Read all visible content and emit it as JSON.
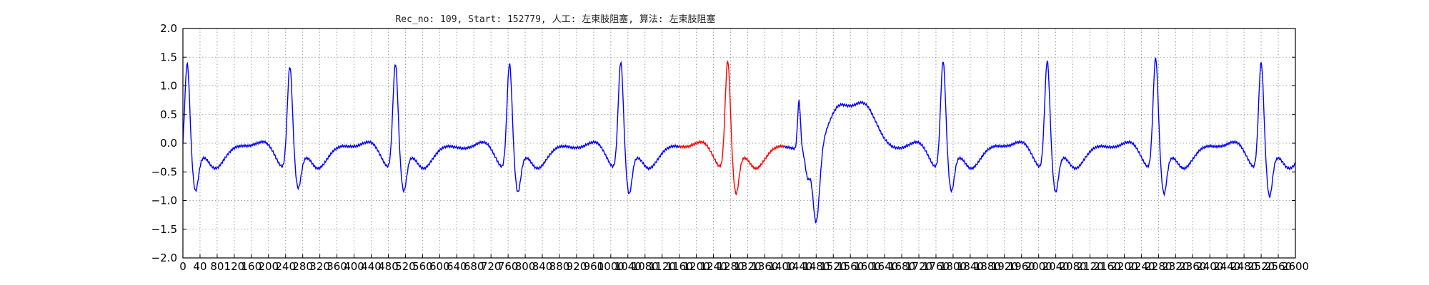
{
  "chart_data": {
    "type": "line",
    "title": "Rec_no: 109, Start: 152779, 人工: 左束肢阻塞, 算法: 左束肢阻塞",
    "xlabel": "",
    "ylabel": "",
    "xlim": [
      0,
      3900
    ],
    "ylim": [
      -2.0,
      2.0
    ],
    "grid": true,
    "grid_style": "dotted",
    "ytick_labels": [
      "2.0",
      "1.5",
      "1.0",
      "0.5",
      "0.0",
      "−0.5",
      "−1.0",
      "−1.5",
      "−2.0"
    ],
    "xtick_labels": [
      "0",
      "40",
      "80",
      "120",
      "160",
      "200",
      "240",
      "280",
      "320",
      "360",
      "400",
      "440",
      "480",
      "520",
      "560",
      "600",
      "640",
      "680",
      "720",
      "760",
      "800",
      "840",
      "880",
      "920",
      "960",
      "1000",
      "1040",
      "1080",
      "1120",
      "1160",
      "1200",
      "1240",
      "1280",
      "1320",
      "1360",
      "1400",
      "1440",
      "1480",
      "1520",
      "1560",
      "1600",
      "1640",
      "1680",
      "1720",
      "1760",
      "1800",
      "1840",
      "1880",
      "1920",
      "1960",
      "2000",
      "2040",
      "2080",
      "2120",
      "2160",
      "2200",
      "2240",
      "2280",
      "2320",
      "2360",
      "2400",
      "2440",
      "2480",
      "2520",
      "2560",
      "2600"
    ],
    "x_step": 40,
    "signal_end": 3900,
    "series": [
      {
        "color": "#0000ff",
        "beats": [
          {
            "x": 15,
            "peak": 1.55,
            "trough": -0.9
          },
          {
            "x": 375,
            "peak": 1.5,
            "trough": -0.85
          },
          {
            "x": 745,
            "peak": 1.55,
            "trough": -0.9
          },
          {
            "x": 1145,
            "peak": 1.55,
            "trough": -0.92
          },
          {
            "x": 1535,
            "peak": 1.58,
            "trough": -0.95
          },
          {
            "x": 2665,
            "peak": 1.6,
            "trough": -0.9
          },
          {
            "x": 3030,
            "peak": 1.6,
            "trough": -0.92
          },
          {
            "x": 3410,
            "peak": 1.65,
            "trough": -0.95
          },
          {
            "x": 3780,
            "peak": 1.57,
            "trough": -1.0
          }
        ],
        "pvc": {
          "x": 2220,
          "spike": 0.65,
          "trough": -1.52,
          "t_wave": 0.5
        }
      },
      {
        "color": "#ff0000",
        "segment": [
          1740,
          2110
        ],
        "beat": {
          "x": 1910,
          "peak": 1.6,
          "trough": -0.95
        }
      }
    ]
  },
  "colors": {
    "axis": "#000000",
    "grid": "#888888",
    "normal": "#0000ff",
    "highlight": "#ff0000"
  }
}
